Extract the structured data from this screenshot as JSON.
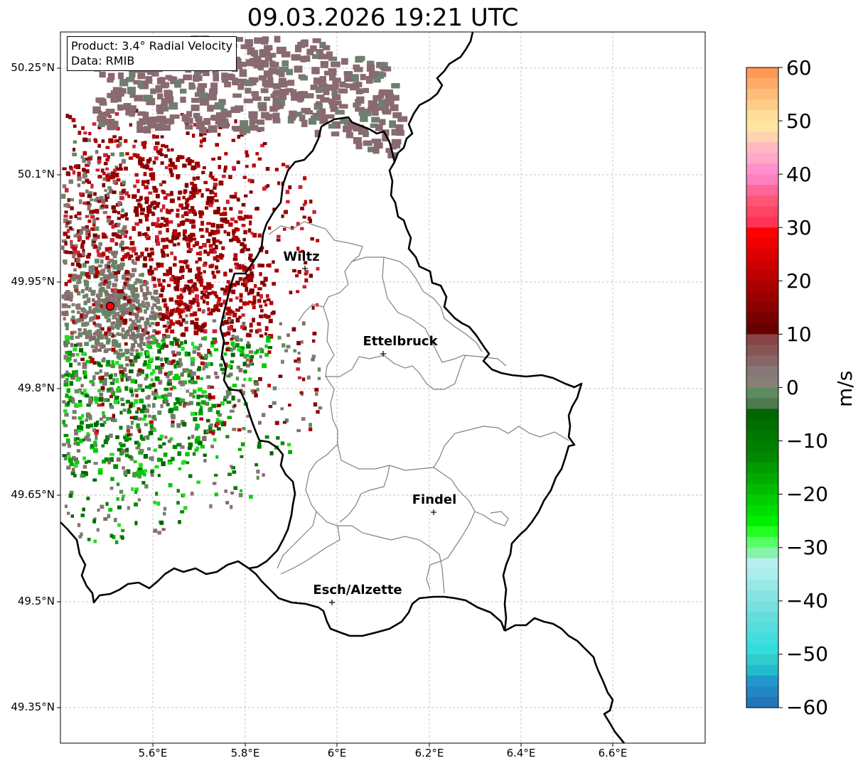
{
  "title": "09.03.2026 19:21 UTC",
  "info": {
    "product": "Product: 3.4° Radial Velocity",
    "data": "Data: RMIB"
  },
  "axes": {
    "lat_ticks": [
      "50.25°N",
      "50.1°N",
      "49.95°N",
      "49.8°N",
      "49.65°N",
      "49.5°N",
      "49.35°N"
    ],
    "lon_ticks": [
      "5.6°E",
      "5.8°E",
      "6°E",
      "6.2°E",
      "6.4°E",
      "6.6°E"
    ],
    "gridlines": true,
    "gridline_style": "dashed"
  },
  "cities": [
    {
      "name": "Wiltz"
    },
    {
      "name": "Ettelbruck"
    },
    {
      "name": "Findel"
    },
    {
      "name": "Esch/Alzette"
    }
  ],
  "radar_site": {
    "marker_color": "#ff0000"
  },
  "colorbar": {
    "unit": "m/s",
    "ticks": [
      "60",
      "50",
      "40",
      "30",
      "20",
      "10",
      "0",
      "−10",
      "−20",
      "−30",
      "−40",
      "−50",
      "−60"
    ],
    "range": [
      -60,
      60
    ],
    "colors_top_to_bottom": [
      "#ff9955",
      "#ffaa66",
      "#ffbb77",
      "#ffcc88",
      "#ffdd99",
      "#ffe6a0",
      "#ffd4b0",
      "#ffb8c0",
      "#ffa8c8",
      "#ff90cc",
      "#ff80c0",
      "#ff6699",
      "#ff5577",
      "#ff4466",
      "#ff3355",
      "#ff0000",
      "#ee0000",
      "#dd0000",
      "#cc0000",
      "#bb0000",
      "#aa0000",
      "#990000",
      "#880000",
      "#770000",
      "#660000",
      "#884444",
      "#885555",
      "#886666",
      "#887777",
      "#888077",
      "#5e8c5e",
      "#4d7a4d",
      "#006600",
      "#006e00",
      "#007700",
      "#008000",
      "#008800",
      "#009900",
      "#00aa00",
      "#00bb00",
      "#00cc00",
      "#00dd00",
      "#00ee00",
      "#22ff22",
      "#55ff66",
      "#88f2aa",
      "#b8eeee",
      "#aaeeee",
      "#99e8e8",
      "#88e4e4",
      "#77e0e0",
      "#66dddd",
      "#55dddd",
      "#44dddd",
      "#33dddd",
      "#33cccc",
      "#22bbcc",
      "#2299cc",
      "#2288c4",
      "#2277bb"
    ]
  }
}
